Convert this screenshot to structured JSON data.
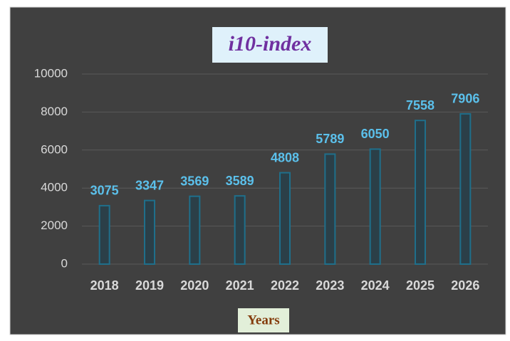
{
  "chart_data": {
    "type": "bar",
    "title": "i10-index",
    "x_label": "Years",
    "categories": [
      "2018",
      "2019",
      "2020",
      "2021",
      "2022",
      "2023",
      "2024",
      "2025",
      "2026"
    ],
    "values": [
      3075,
      3347,
      3569,
      3589,
      4808,
      5789,
      6050,
      7558,
      7906
    ],
    "color": "#1f6f8b",
    "ylim": [
      0,
      10000
    ],
    "yticks": [
      0,
      2000,
      4000,
      6000,
      8000,
      10000
    ],
    "grid": true
  }
}
